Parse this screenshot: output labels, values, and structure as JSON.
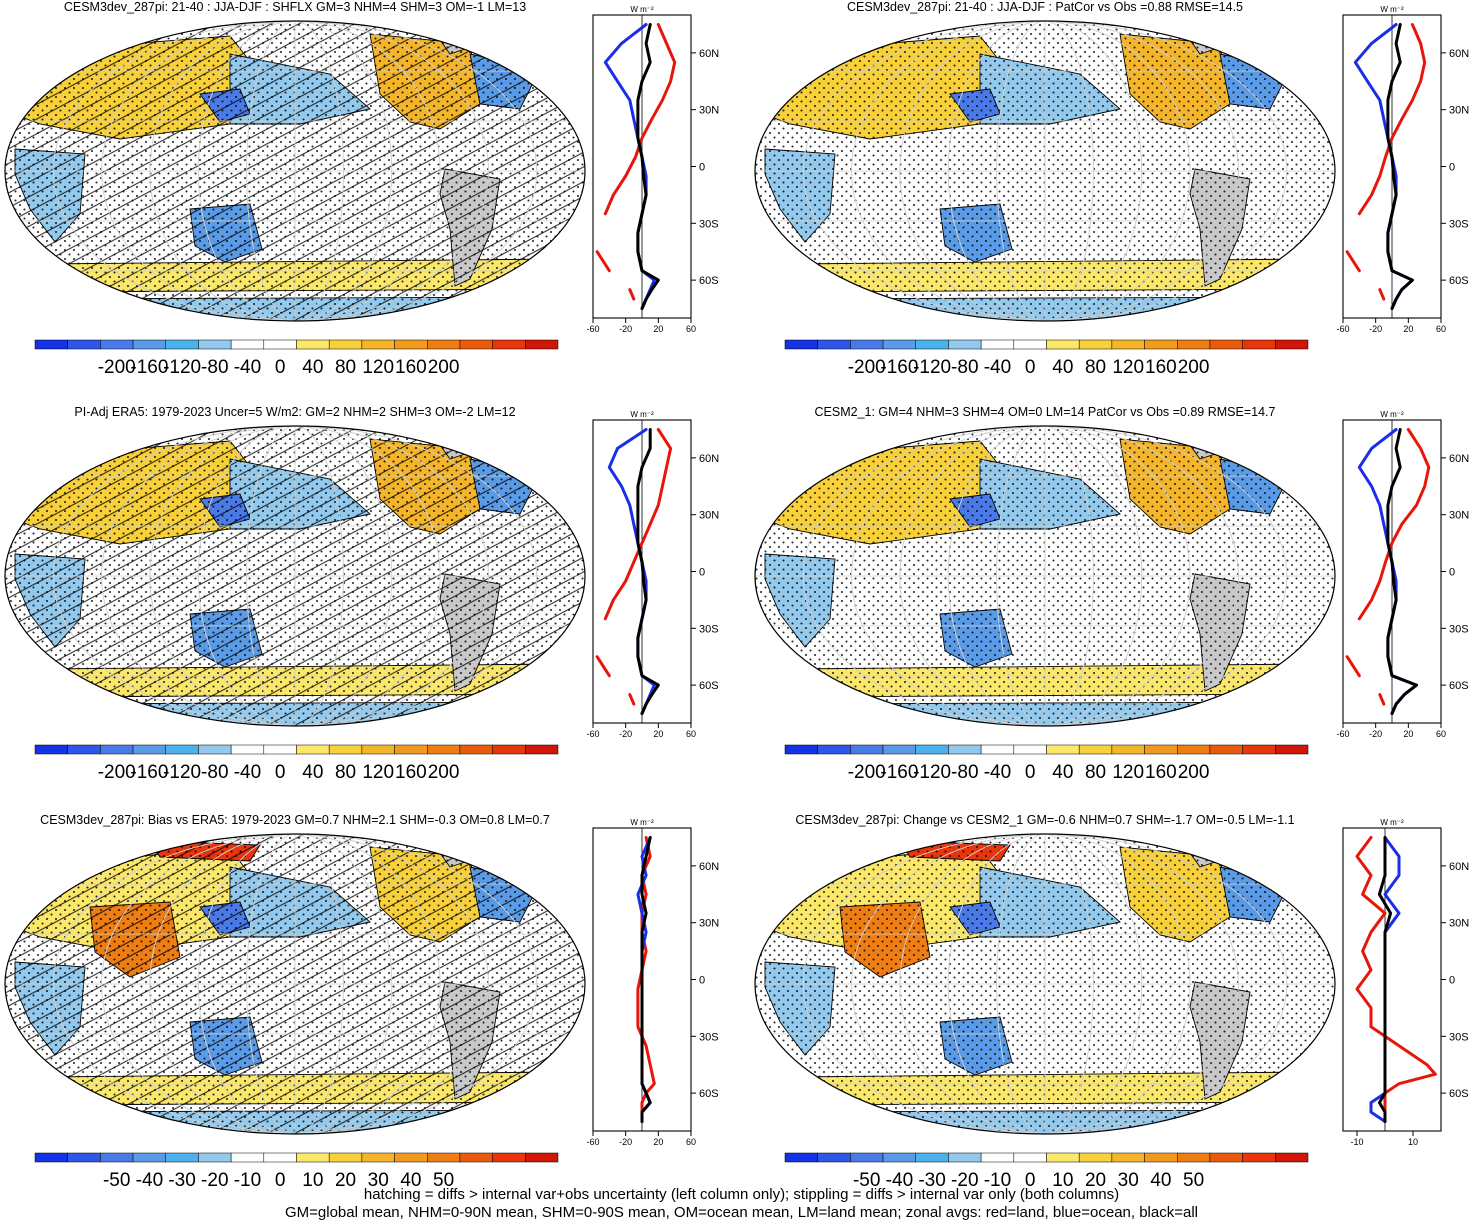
{
  "footer": {
    "line1": "hatching = diffs > internal var+obs uncertainty (left column only); stippling = diffs > internal var only (both columns)",
    "line2": "GM=global mean, NHM=0-90N mean, SHM=0-90S mean, OM=ocean mean, LM=land mean; zonal avgs: red=land, blue=ocean, black=all"
  },
  "chart_data": [
    {
      "type": "heatmap",
      "title": "CESM3dev_287pi: 21-40 : JJA-DJF : SHFLX GM=3 NHM=4 SHM=3 OM=-1 LM=13",
      "zonal_unit": "W m⁻²",
      "zonal_xlim": [
        -60,
        60
      ],
      "zonal_xticks": [
        "-60",
        "-20",
        "20",
        "60"
      ],
      "lat_ticks": [
        "60N",
        "30N",
        "0",
        "30S",
        "60S"
      ],
      "colorbar_labels": [
        "-200",
        "-160",
        "-120",
        "-80",
        "-40",
        "0",
        "40",
        "80",
        "120",
        "160",
        "200"
      ],
      "hatching": true,
      "zonal_lat": [
        75,
        65,
        55,
        45,
        35,
        25,
        15,
        5,
        -5,
        -15,
        -25,
        -35,
        -45,
        -55,
        -60,
        -65,
        -70,
        -75
      ],
      "zonal_land": [
        20,
        30,
        40,
        35,
        25,
        12,
        0,
        -8,
        -20,
        -35,
        -45,
        null,
        -55,
        -40,
        null,
        -15,
        -10,
        null
      ],
      "zonal_ocean": [
        5,
        -25,
        -45,
        -30,
        -15,
        -10,
        -5,
        0,
        5,
        5,
        0,
        -5,
        -5,
        0,
        15,
        10,
        5,
        0
      ],
      "zonal_all": [
        10,
        5,
        10,
        0,
        -5,
        -5,
        -5,
        0,
        2,
        5,
        0,
        -5,
        -5,
        0,
        20,
        12,
        5,
        0
      ]
    },
    {
      "type": "heatmap",
      "title": "CESM3dev_287pi: 21-40 : JJA-DJF : PatCor vs Obs =0.88 RMSE=14.5",
      "zonal_unit": "W m⁻²",
      "zonal_xlim": [
        -60,
        60
      ],
      "zonal_xticks": [
        "-60",
        "-20",
        "20",
        "60"
      ],
      "lat_ticks": [
        "60N",
        "30N",
        "0",
        "30S",
        "60S"
      ],
      "colorbar_labels": [
        "-200",
        "-160",
        "-120",
        "-80",
        "-40",
        "0",
        "40",
        "80",
        "120",
        "160",
        "200"
      ],
      "hatching": false,
      "zonal_lat": [
        75,
        65,
        55,
        45,
        35,
        25,
        15,
        5,
        -5,
        -15,
        -25,
        -35,
        -45,
        -55,
        -60,
        -65,
        -70,
        -75
      ],
      "zonal_land": [
        25,
        35,
        40,
        35,
        25,
        12,
        0,
        -8,
        -15,
        -25,
        -40,
        null,
        -55,
        -40,
        null,
        -15,
        -10,
        null
      ],
      "zonal_ocean": [
        5,
        -25,
        -45,
        -30,
        -15,
        -10,
        -5,
        0,
        5,
        5,
        0,
        -5,
        -5,
        0,
        25,
        12,
        5,
        0
      ],
      "zonal_all": [
        10,
        5,
        10,
        0,
        -5,
        -5,
        -5,
        0,
        2,
        5,
        0,
        -5,
        -5,
        0,
        25,
        12,
        5,
        0
      ]
    },
    {
      "type": "heatmap",
      "title": "PI-Adj ERA5: 1979-2023 Uncer=5 W/m2: GM=2 NHM=2 SHM=3 OM=-2 LM=12",
      "zonal_unit": "W m⁻²",
      "zonal_xlim": [
        -60,
        60
      ],
      "zonal_xticks": [
        "-60",
        "-20",
        "20",
        "60"
      ],
      "lat_ticks": [
        "60N",
        "30N",
        "0",
        "30S",
        "60S"
      ],
      "colorbar_labels": [
        "-200",
        "-160",
        "-120",
        "-80",
        "-40",
        "0",
        "40",
        "80",
        "120",
        "160",
        "200"
      ],
      "hatching": true,
      "zonal_lat": [
        75,
        65,
        55,
        45,
        35,
        25,
        15,
        5,
        -5,
        -15,
        -25,
        -35,
        -45,
        -55,
        -60,
        -65,
        -70,
        -75
      ],
      "zonal_land": [
        20,
        35,
        30,
        25,
        20,
        10,
        0,
        -10,
        -20,
        -35,
        -45,
        null,
        -55,
        -40,
        null,
        -15,
        -10,
        null
      ],
      "zonal_ocean": [
        5,
        -30,
        -40,
        -25,
        -15,
        -10,
        -5,
        0,
        5,
        5,
        0,
        -5,
        -5,
        0,
        15,
        10,
        5,
        0
      ],
      "zonal_all": [
        10,
        10,
        0,
        -5,
        -5,
        -5,
        -5,
        0,
        2,
        5,
        0,
        -5,
        -5,
        0,
        20,
        12,
        5,
        0
      ]
    },
    {
      "type": "heatmap",
      "title": "CESM2_1: GM=4 NHM=3 SHM=4 OM=0 LM=14 PatCor vs Obs =0.89 RMSE=14.7",
      "zonal_unit": "W m⁻²",
      "zonal_xlim": [
        -60,
        60
      ],
      "zonal_xticks": [
        "-60",
        "-20",
        "20",
        "60"
      ],
      "lat_ticks": [
        "60N",
        "30N",
        "0",
        "30S",
        "60S"
      ],
      "colorbar_labels": [
        "-200",
        "-160",
        "-120",
        "-80",
        "-40",
        "0",
        "40",
        "80",
        "120",
        "160",
        "200"
      ],
      "hatching": false,
      "zonal_lat": [
        75,
        65,
        55,
        45,
        35,
        25,
        15,
        5,
        -5,
        -15,
        -25,
        -35,
        -45,
        -55,
        -60,
        -65,
        -70,
        -75
      ],
      "zonal_land": [
        20,
        35,
        45,
        40,
        30,
        12,
        0,
        -8,
        -15,
        -25,
        -40,
        null,
        -55,
        -40,
        null,
        -15,
        -10,
        null
      ],
      "zonal_ocean": [
        5,
        -25,
        -40,
        -25,
        -15,
        -10,
        -5,
        0,
        5,
        5,
        0,
        -5,
        -5,
        0,
        30,
        15,
        5,
        0
      ],
      "zonal_all": [
        10,
        5,
        10,
        0,
        -5,
        -5,
        -5,
        0,
        2,
        5,
        0,
        -5,
        -5,
        0,
        30,
        15,
        5,
        0
      ]
    },
    {
      "type": "heatmap",
      "title": "CESM3dev_287pi: Bias vs ERA5: 1979-2023 GM=0.7 NHM=2.1 SHM=-0.3 OM=0.8 LM=0.7",
      "zonal_unit": "W m⁻²",
      "zonal_xlim": [
        -60,
        60
      ],
      "zonal_xticks": [
        "-60",
        "-20",
        "20",
        "60"
      ],
      "lat_ticks": [
        "60N",
        "30N",
        "0",
        "30S",
        "60S"
      ],
      "colorbar_labels": [
        "-50",
        "-40",
        "-30",
        "-20",
        "-10",
        "0",
        "10",
        "20",
        "30",
        "40",
        "50"
      ],
      "hatching": true,
      "zonal_lat": [
        75,
        65,
        55,
        45,
        35,
        25,
        15,
        5,
        -5,
        -15,
        -25,
        -35,
        -45,
        -55,
        -60,
        -65,
        -70,
        -75
      ],
      "zonal_land": [
        5,
        10,
        0,
        5,
        0,
        0,
        5,
        0,
        -5,
        -5,
        -5,
        5,
        10,
        15,
        5,
        0,
        0,
        0
      ],
      "zonal_ocean": [
        10,
        0,
        5,
        -5,
        0,
        5,
        0,
        0,
        0,
        0,
        0,
        0,
        0,
        0,
        5,
        10,
        0,
        0
      ],
      "zonal_all": [
        10,
        5,
        0,
        0,
        5,
        0,
        0,
        0,
        0,
        0,
        0,
        0,
        0,
        0,
        5,
        10,
        0,
        0
      ]
    },
    {
      "type": "heatmap",
      "title": "CESM3dev_287pi: Change vs CESM2_1 GM=-0.6 NHM=0.7 SHM=-1.7 OM=-0.5 LM=-1.1",
      "zonal_unit": "W m⁻²",
      "zonal_xlim": [
        -15,
        20
      ],
      "zonal_xticks": [
        "-10",
        "10"
      ],
      "lat_ticks": [
        "60N",
        "30N",
        "0",
        "30S",
        "60S"
      ],
      "colorbar_labels": [
        "-50",
        "-40",
        "-30",
        "-20",
        "-10",
        "0",
        "10",
        "20",
        "30",
        "40",
        "50"
      ],
      "hatching": false,
      "zonal_lat": [
        75,
        65,
        55,
        45,
        35,
        25,
        15,
        5,
        -5,
        -15,
        -25,
        -35,
        -45,
        -50,
        -55,
        -60,
        -65,
        -70,
        -75
      ],
      "zonal_land": [
        -5,
        -10,
        -5,
        -8,
        0,
        -5,
        -8,
        -5,
        -10,
        -5,
        -5,
        5,
        15,
        18,
        5,
        0,
        0,
        0,
        0
      ],
      "zonal_ocean": [
        0,
        5,
        5,
        0,
        5,
        0,
        0,
        0,
        0,
        0,
        0,
        0,
        0,
        0,
        0,
        0,
        -5,
        -5,
        0
      ],
      "zonal_all": [
        0,
        0,
        0,
        -2,
        2,
        0,
        0,
        0,
        0,
        0,
        0,
        0,
        0,
        0,
        0,
        0,
        -2,
        0,
        0
      ]
    }
  ]
}
